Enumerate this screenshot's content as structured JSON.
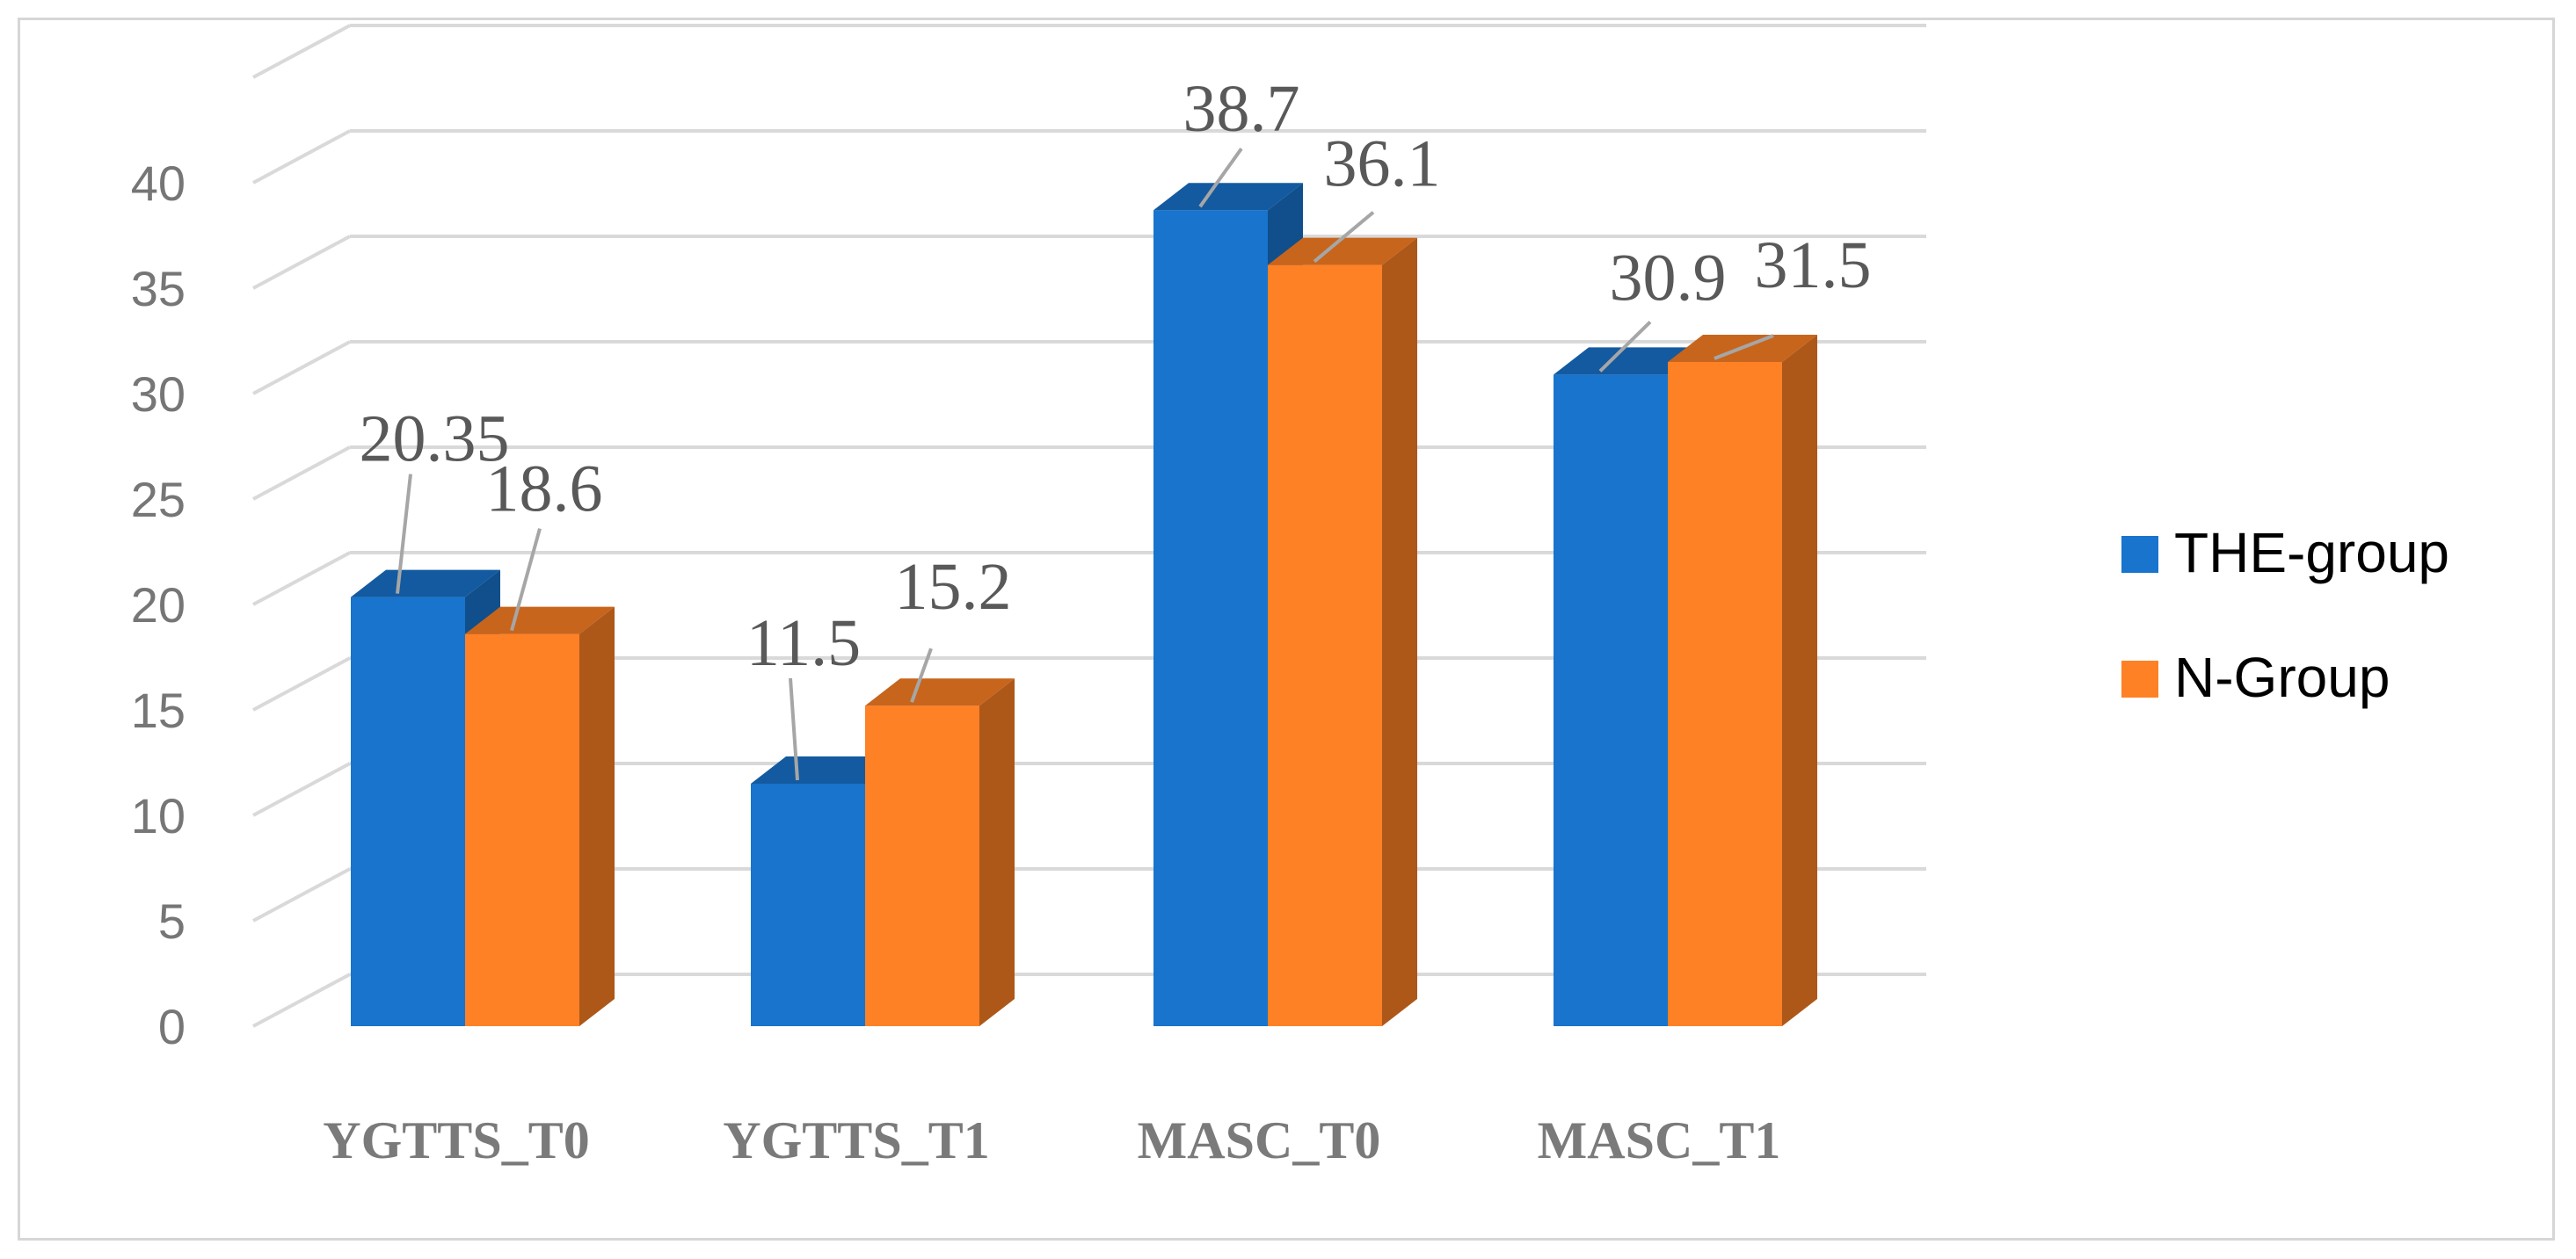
{
  "chart_data": {
    "type": "bar",
    "categories": [
      "YGTTS_T0",
      "YGTTS_T1",
      "MASC_T0",
      "MASC_T1"
    ],
    "series": [
      {
        "name": "THE-group",
        "values": [
          20.35,
          11.5,
          38.7,
          30.9
        ],
        "labels": [
          "20.35",
          "11.5",
          "38.7",
          "30.9"
        ],
        "color": "#1874CD"
      },
      {
        "name": "N-Group",
        "values": [
          18.6,
          15.2,
          36.1,
          31.5
        ],
        "labels": [
          "18.6",
          "15.2",
          "36.1",
          "31.5"
        ],
        "color": "#FF8125"
      }
    ],
    "yticks": [
      "0",
      "5",
      "10",
      "15",
      "20",
      "25",
      "30",
      "35",
      "40"
    ],
    "ylim": [
      0,
      45
    ],
    "grid": true,
    "legend_position": "right",
    "three_d": true
  }
}
